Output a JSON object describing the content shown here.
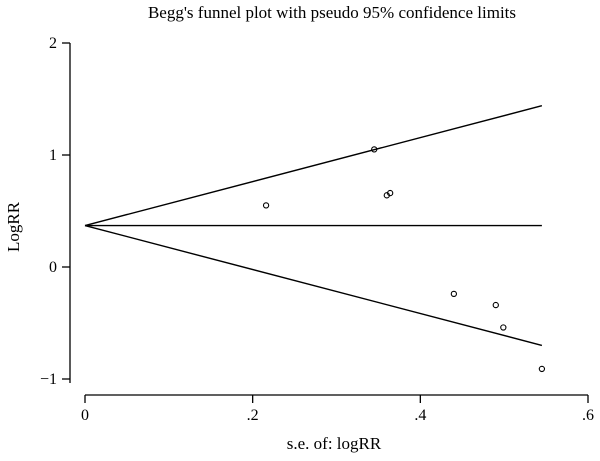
{
  "chart_data": {
    "type": "scatter",
    "title": "Begg's funnel plot with pseudo 95% confidence limits",
    "xlabel": "s.e. of: logRR",
    "ylabel": "LogRR",
    "xlim": [
      0,
      0.6
    ],
    "ylim": [
      -1,
      2
    ],
    "xticks": [
      0,
      0.2,
      0.4,
      0.6
    ],
    "xtick_labels": [
      "0",
      ".2",
      ".4",
      ".6"
    ],
    "yticks": [
      2,
      1,
      0,
      -1
    ],
    "ytick_labels": [
      "2",
      "1",
      "0",
      "−1"
    ],
    "grid": false,
    "pooled_estimate": 0.37,
    "limit_lines": [
      {
        "x": [
          0,
          0.545
        ],
        "y": [
          0.37,
          1.44
        ]
      },
      {
        "x": [
          0,
          0.545
        ],
        "y": [
          0.37,
          0.37
        ]
      },
      {
        "x": [
          0,
          0.545
        ],
        "y": [
          0.37,
          -0.7
        ]
      }
    ],
    "points": [
      {
        "x": 0.216,
        "y": 0.55
      },
      {
        "x": 0.345,
        "y": 1.05
      },
      {
        "x": 0.36,
        "y": 0.64
      },
      {
        "x": 0.364,
        "y": 0.66
      },
      {
        "x": 0.44,
        "y": -0.24
      },
      {
        "x": 0.49,
        "y": -0.34
      },
      {
        "x": 0.499,
        "y": -0.54
      },
      {
        "x": 0.545,
        "y": -0.91
      }
    ]
  }
}
